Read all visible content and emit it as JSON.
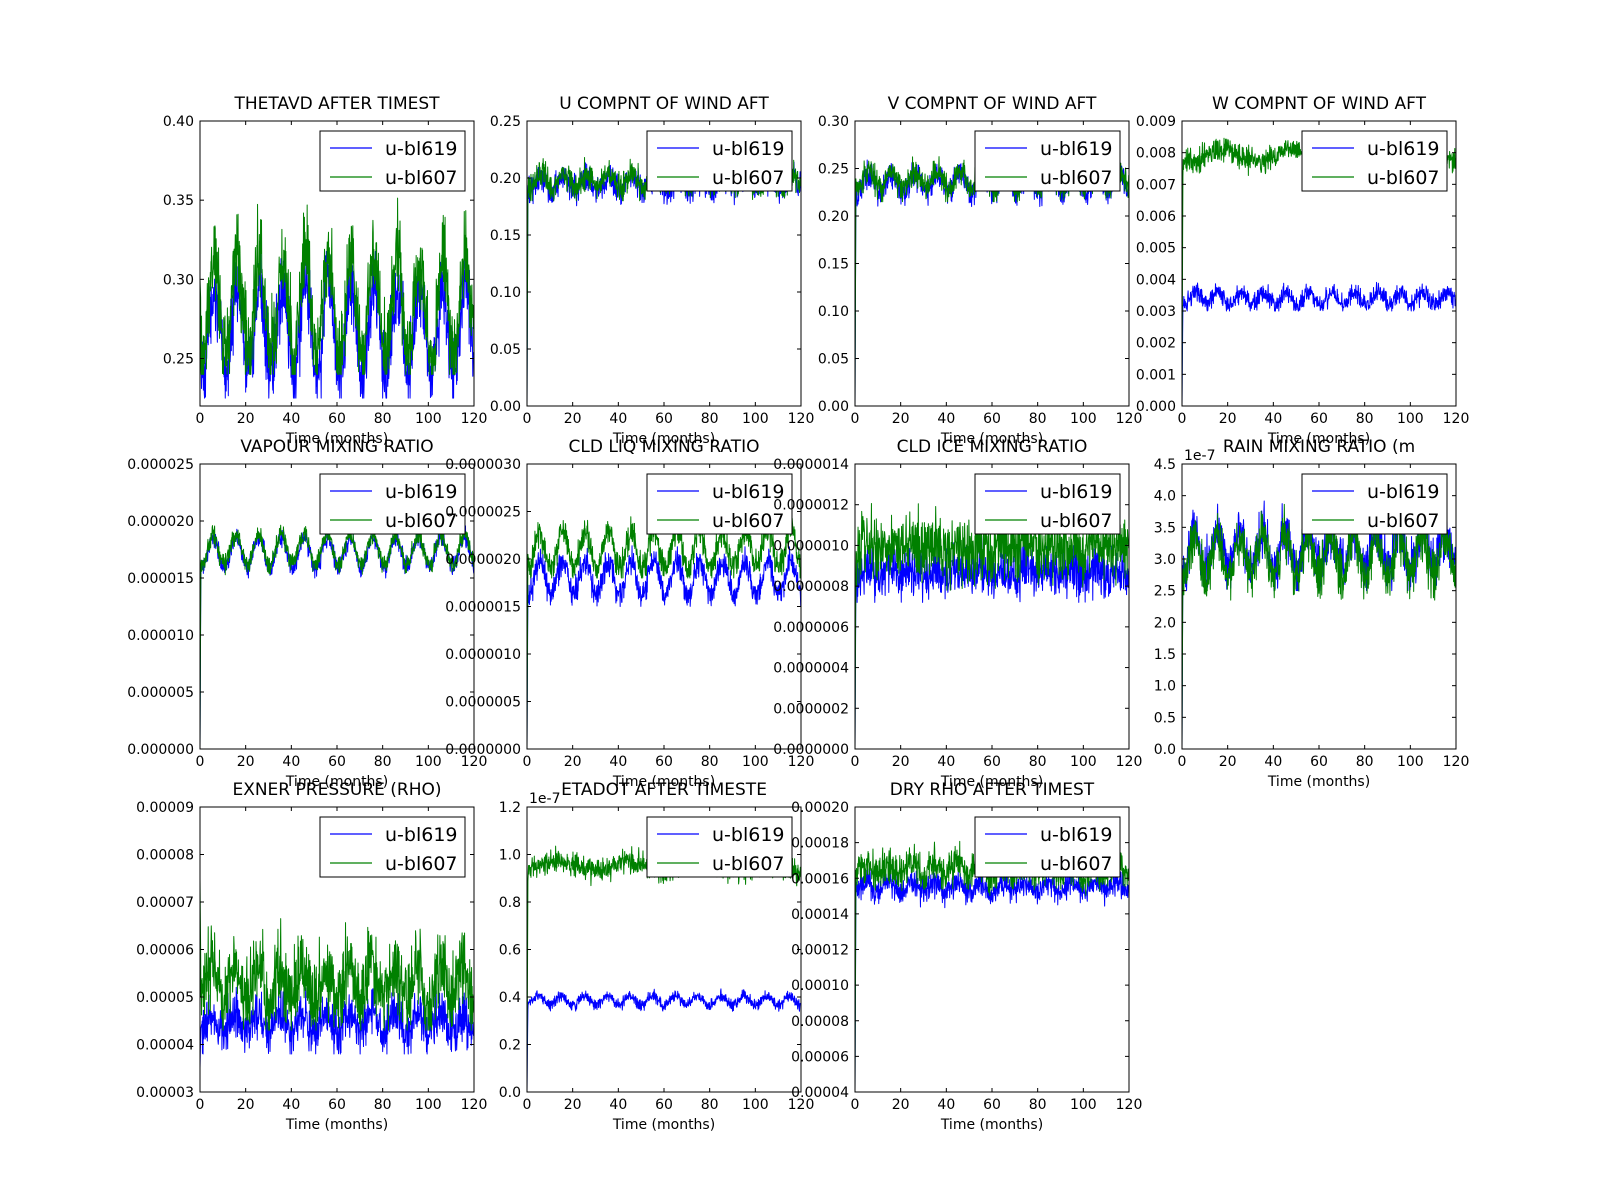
{
  "chart_data": [
    {
      "type": "line",
      "title": "THETAVD AFTER TIMEST",
      "xlabel": "Time (months)",
      "ylabel": "",
      "xlim": [
        0,
        120
      ],
      "ylim": [
        0.22,
        0.4
      ],
      "xticks": [
        "0",
        "20",
        "40",
        "60",
        "80",
        "100",
        "120"
      ],
      "yticks": [
        "0.25",
        "0.30",
        "0.35",
        "0.40"
      ],
      "legend": "top-right",
      "series": [
        {
          "name": "u-bl619",
          "color": "#0000ff",
          "start": 0.26,
          "mean": 0.268,
          "osc_amp": 0.028,
          "noise": 0.012,
          "period_months": 10,
          "y_range": [
            0.225,
            0.33
          ]
        },
        {
          "name": "u-bl607",
          "color": "#008000",
          "start": 0.3,
          "mean": 0.283,
          "osc_amp": 0.032,
          "noise": 0.014,
          "period_months": 10,
          "y_range": [
            0.24,
            0.37
          ]
        }
      ]
    },
    {
      "type": "line",
      "title": "U COMPNT OF WIND AFT",
      "xlabel": "Time (months)",
      "ylabel": "",
      "xlim": [
        0,
        120
      ],
      "ylim": [
        0.0,
        0.25
      ],
      "xticks": [
        "0",
        "20",
        "40",
        "60",
        "80",
        "100",
        "120"
      ],
      "yticks": [
        "0.00",
        "0.05",
        "0.10",
        "0.15",
        "0.20",
        "0.25"
      ],
      "legend": "top-right",
      "series": [
        {
          "name": "u-bl619",
          "color": "#0000ff",
          "start": 0.0,
          "mean": 0.195,
          "osc_amp": 0.006,
          "noise": 0.006,
          "period_months": 10,
          "y_range": [
            0.175,
            0.225
          ]
        },
        {
          "name": "u-bl607",
          "color": "#008000",
          "start": 0.0,
          "mean": 0.198,
          "osc_amp": 0.006,
          "noise": 0.006,
          "period_months": 10,
          "y_range": [
            0.18,
            0.225
          ]
        }
      ]
    },
    {
      "type": "line",
      "title": "V COMPNT OF WIND AFT",
      "xlabel": "Time (months)",
      "ylabel": "",
      "xlim": [
        0,
        120
      ],
      "ylim": [
        0.0,
        0.3
      ],
      "xticks": [
        "0",
        "20",
        "40",
        "60",
        "80",
        "100",
        "120"
      ],
      "yticks": [
        "0.00",
        "0.05",
        "0.10",
        "0.15",
        "0.20",
        "0.25",
        "0.30"
      ],
      "legend": "top-right",
      "series": [
        {
          "name": "u-bl619",
          "color": "#0000ff",
          "start": 0.0,
          "mean": 0.235,
          "osc_amp": 0.01,
          "noise": 0.007,
          "period_months": 10,
          "y_range": [
            0.21,
            0.275
          ]
        },
        {
          "name": "u-bl607",
          "color": "#008000",
          "start": 0.0,
          "mean": 0.238,
          "osc_amp": 0.01,
          "noise": 0.007,
          "period_months": 10,
          "y_range": [
            0.215,
            0.27
          ]
        }
      ]
    },
    {
      "type": "line",
      "title": "W COMPNT OF WIND AFT",
      "xlabel": "Time (months)",
      "ylabel": "",
      "xlim": [
        0,
        120
      ],
      "ylim": [
        0.0,
        0.009
      ],
      "xticks": [
        "0",
        "20",
        "40",
        "60",
        "80",
        "100",
        "120"
      ],
      "yticks": [
        "0.000",
        "0.001",
        "0.002",
        "0.003",
        "0.004",
        "0.005",
        "0.006",
        "0.007",
        "0.008",
        "0.009"
      ],
      "legend": "top-right",
      "series": [
        {
          "name": "u-bl619",
          "color": "#0000ff",
          "start": 0.0,
          "mean": 0.0034,
          "osc_amp": 0.0002,
          "noise": 0.00015,
          "period_months": 10,
          "y_range": [
            0.003,
            0.0042
          ]
        },
        {
          "name": "u-bl607",
          "color": "#008000",
          "start": 0.0,
          "mean": 0.0079,
          "osc_amp": 0.0002,
          "noise": 0.0002,
          "period_months": 30,
          "y_range": [
            0.0072,
            0.0089
          ]
        }
      ]
    },
    {
      "type": "line",
      "title": "VAPOUR MIXING RATIO",
      "xlabel": "Time (months)",
      "ylabel": "",
      "xlim": [
        0,
        120
      ],
      "ylim": [
        0.0,
        2.5e-05
      ],
      "xticks": [
        "0",
        "20",
        "40",
        "60",
        "80",
        "100",
        "120"
      ],
      "yticks": [
        "0.000000",
        "0.000005",
        "0.000010",
        "0.000015",
        "0.000020",
        "0.000025"
      ],
      "legend": "top-right",
      "series": [
        {
          "name": "u-bl619",
          "color": "#0000ff",
          "start": 0.0,
          "mean": 1.72e-05,
          "osc_amp": 1.3e-06,
          "noise": 4e-07,
          "period_months": 10,
          "y_range": [
            1.5e-05,
            2.05e-05
          ]
        },
        {
          "name": "u-bl607",
          "color": "#008000",
          "start": 0.0,
          "mean": 1.75e-05,
          "osc_amp": 1.3e-06,
          "noise": 4e-07,
          "period_months": 10,
          "y_range": [
            1.52e-05,
            2.05e-05
          ]
        }
      ]
    },
    {
      "type": "line",
      "title": "CLD LIQ MIXING RATIO",
      "xlabel": "Time (months)",
      "ylabel": "",
      "xlim": [
        0,
        120
      ],
      "ylim": [
        0.0,
        3e-06
      ],
      "xticks": [
        "0",
        "20",
        "40",
        "60",
        "80",
        "100",
        "120"
      ],
      "yticks": [
        "0.0000000",
        "0.0000005",
        "0.0000010",
        "0.0000015",
        "0.0000020",
        "0.0000025",
        "0.0000030"
      ],
      "legend": "top-right",
      "series": [
        {
          "name": "u-bl619",
          "color": "#0000ff",
          "start": 0.0,
          "mean": 1.8e-06,
          "osc_amp": 1.8e-07,
          "noise": 7e-08,
          "period_months": 10,
          "y_range": [
            1.5e-06,
            2.3e-06
          ]
        },
        {
          "name": "u-bl607",
          "color": "#008000",
          "start": 0.0,
          "mean": 2.1e-06,
          "osc_amp": 2e-07,
          "noise": 8e-08,
          "period_months": 10,
          "y_range": [
            1.8e-06,
            2.6e-06
          ]
        }
      ]
    },
    {
      "type": "line",
      "title": "CLD ICE MIXING RATIO",
      "xlabel": "Time (months)",
      "ylabel": "",
      "xlim": [
        0,
        120
      ],
      "ylim": [
        0.0,
        1.4e-06
      ],
      "xticks": [
        "0",
        "20",
        "40",
        "60",
        "80",
        "100",
        "120"
      ],
      "yticks": [
        "0.0000000",
        "0.0000002",
        "0.0000004",
        "0.0000006",
        "0.0000008",
        "0.0000010",
        "0.0000012",
        "0.0000014"
      ],
      "legend": "top-right",
      "series": [
        {
          "name": "u-bl619",
          "color": "#0000ff",
          "start": 0.0,
          "mean": 8.7e-07,
          "osc_amp": 2e-08,
          "noise": 6e-08,
          "period_months": 10,
          "y_range": [
            7.2e-07,
            1.08e-06
          ]
        },
        {
          "name": "u-bl607",
          "color": "#008000",
          "start": 0.0,
          "mean": 9.9e-07,
          "osc_amp": 2e-08,
          "noise": 8e-08,
          "period_months": 10,
          "y_range": [
            7.8e-07,
            1.25e-06
          ]
        }
      ]
    },
    {
      "type": "line",
      "title": "RAIN MIXING RATIO (m",
      "xlabel": "Time (months)",
      "ylabel": "",
      "xlim": [
        0,
        120
      ],
      "ylim": [
        0.0,
        4.5
      ],
      "y_multiplier": "1e-7",
      "xticks": [
        "0",
        "20",
        "40",
        "60",
        "80",
        "100",
        "120"
      ],
      "yticks": [
        "0.0",
        "0.5",
        "1.0",
        "1.5",
        "2.0",
        "2.5",
        "3.0",
        "3.5",
        "4.0",
        "4.5"
      ],
      "legend": "top-right",
      "series": [
        {
          "name": "u-bl619",
          "color": "#0000ff",
          "start": 0.0,
          "mean": 3.15,
          "osc_amp": 0.3,
          "noise": 0.2,
          "period_months": 10,
          "y_range": [
            2.5,
            4.15
          ]
        },
        {
          "name": "u-bl607",
          "color": "#008000",
          "start": 0.0,
          "mean": 3.05,
          "osc_amp": 0.32,
          "noise": 0.2,
          "period_months": 10,
          "y_range": [
            2.35,
            4.1
          ]
        }
      ]
    },
    {
      "type": "line",
      "title": "EXNER PRESSURE (RHO)",
      "xlabel": "Time (months)",
      "ylabel": "",
      "xlim": [
        0,
        120
      ],
      "ylim": [
        3e-05,
        9e-05
      ],
      "xticks": [
        "0",
        "20",
        "40",
        "60",
        "80",
        "100",
        "120"
      ],
      "yticks": [
        "0.00003",
        "0.00004",
        "0.00005",
        "0.00006",
        "0.00007",
        "0.00008",
        "0.00009"
      ],
      "legend": "top-right",
      "series": [
        {
          "name": "u-bl619",
          "color": "#0000ff",
          "start": 3.5e-05,
          "mean": 4.45e-05,
          "osc_amp": 2e-06,
          "noise": 2.5e-06,
          "period_months": 10,
          "y_range": [
            3.8e-05,
            5.6e-05
          ]
        },
        {
          "name": "u-bl607",
          "color": "#008000",
          "start": 7.5e-05,
          "mean": 5.3e-05,
          "osc_amp": 4e-06,
          "noise": 4e-06,
          "period_months": 10,
          "y_range": [
            4.3e-05,
            7.7e-05
          ]
        }
      ]
    },
    {
      "type": "line",
      "title": "ETADOT AFTER TIMESTE",
      "xlabel": "Time (months)",
      "ylabel": "",
      "xlim": [
        0,
        120
      ],
      "ylim": [
        0.0,
        1.2
      ],
      "y_multiplier": "1e-7",
      "xticks": [
        "0",
        "20",
        "40",
        "60",
        "80",
        "100",
        "120"
      ],
      "yticks": [
        "0.0",
        "0.2",
        "0.4",
        "0.6",
        "0.8",
        "1.0",
        "1.2"
      ],
      "legend": "top-right",
      "series": [
        {
          "name": "u-bl619",
          "color": "#0000ff",
          "start": 0.0,
          "mean": 0.385,
          "osc_amp": 0.02,
          "noise": 0.012,
          "period_months": 10,
          "y_range": [
            0.34,
            0.49
          ]
        },
        {
          "name": "u-bl607",
          "color": "#008000",
          "start": 0.0,
          "mean": 0.95,
          "osc_amp": 0.02,
          "noise": 0.025,
          "period_months": 30,
          "y_range": [
            0.86,
            1.07
          ]
        }
      ]
    },
    {
      "type": "line",
      "title": "DRY RHO AFTER TIMEST",
      "xlabel": "Time (months)",
      "ylabel": "",
      "xlim": [
        0,
        120
      ],
      "ylim": [
        4e-05,
        0.0002
      ],
      "xticks": [
        "0",
        "20",
        "40",
        "60",
        "80",
        "100",
        "120"
      ],
      "yticks": [
        "0.00004",
        "0.00006",
        "0.00008",
        "0.00010",
        "0.00012",
        "0.00014",
        "0.00016",
        "0.00018",
        "0.00020"
      ],
      "legend": "top-right",
      "series": [
        {
          "name": "u-bl619",
          "color": "#0000ff",
          "start": 4e-05,
          "mean": 0.000155,
          "osc_amp": 3e-06,
          "noise": 3.5e-06,
          "period_months": 10,
          "y_range": [
            0.000138,
            0.000172
          ]
        },
        {
          "name": "u-bl607",
          "color": "#008000",
          "start": 4e-05,
          "mean": 0.000165,
          "osc_amp": 3e-06,
          "noise": 5e-06,
          "period_months": 10,
          "y_range": [
            0.000145,
            0.000188
          ]
        }
      ]
    }
  ]
}
